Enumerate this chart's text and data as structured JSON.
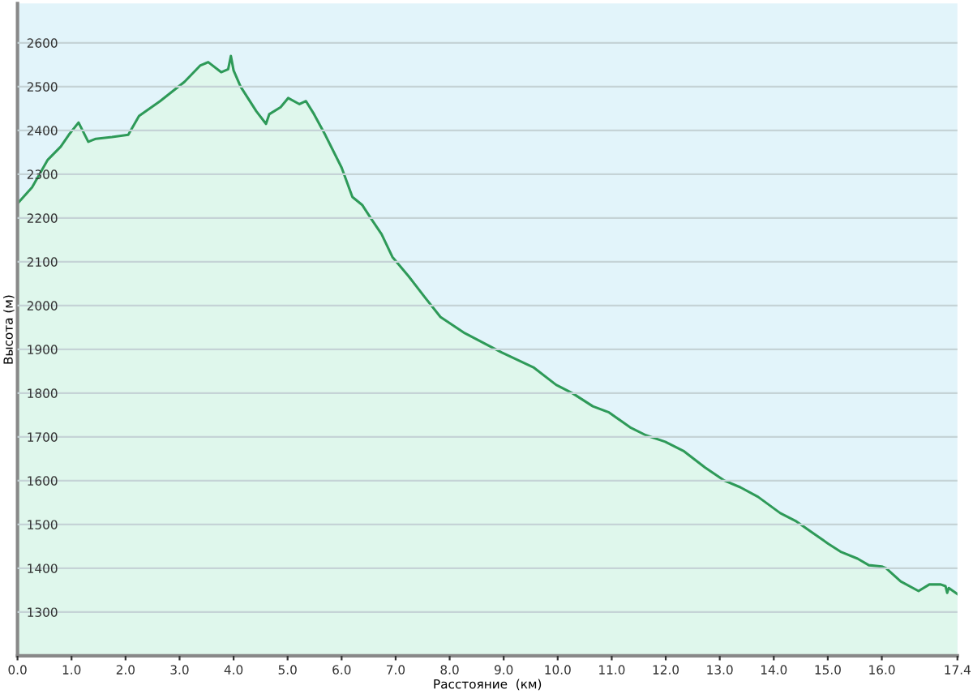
{
  "chart_data": {
    "type": "area",
    "xlabel": "Расстояние  (км)",
    "ylabel": "Высота (м)",
    "x": [
      0,
      0.27,
      0.56,
      0.8,
      0.95,
      1.13,
      1.31,
      1.45,
      1.75,
      2.05,
      2.25,
      2.64,
      3.09,
      3.38,
      3.53,
      3.77,
      3.9,
      3.95,
      4.0,
      4.13,
      4.42,
      4.6,
      4.66,
      4.87,
      5.01,
      5.22,
      5.34,
      5.49,
      5.7,
      6.0,
      6.2,
      6.38,
      6.56,
      6.74,
      6.94,
      7.24,
      7.54,
      7.83,
      8.28,
      8.96,
      9.55,
      9.97,
      10.27,
      10.65,
      10.95,
      11.34,
      11.63,
      11.99,
      12.34,
      12.73,
      13.09,
      13.38,
      13.71,
      14.12,
      14.42,
      14.72,
      15.01,
      15.25,
      15.55,
      15.76,
      16.0,
      16.08,
      16.35,
      16.68,
      16.88,
      17.09,
      17.18,
      17.21,
      17.24,
      17.4
    ],
    "series": [
      {
        "color": "#2e9a58",
        "values": [
          2233,
          2270,
          2333,
          2363,
          2390,
          2418,
          2374,
          2381,
          2385,
          2390,
          2433,
          2467,
          2511,
          2548,
          2556,
          2533,
          2540,
          2570,
          2537,
          2500,
          2444,
          2415,
          2437,
          2453,
          2474,
          2460,
          2467,
          2437,
          2389,
          2315,
          2248,
          2230,
          2196,
          2163,
          2111,
          2067,
          2019,
          1974,
          1937,
          1893,
          1859,
          1819,
          1800,
          1770,
          1756,
          1722,
          1704,
          1689,
          1667,
          1630,
          1600,
          1585,
          1563,
          1526,
          1507,
          1481,
          1456,
          1437,
          1422,
          1407,
          1404,
          1400,
          1370,
          1348,
          1363,
          1363,
          1359,
          1344,
          1355,
          1341
        ]
      }
    ],
    "xlim": [
      0,
      17.4
    ],
    "xticks": [
      {
        "value": 0,
        "label": "0.0"
      },
      {
        "value": 1,
        "label": "1.0"
      },
      {
        "value": 2,
        "label": "2.0"
      },
      {
        "value": 3,
        "label": "3.0"
      },
      {
        "value": 4,
        "label": "4.0"
      },
      {
        "value": 5,
        "label": "5.0"
      },
      {
        "value": 6,
        "label": "6.0"
      },
      {
        "value": 7,
        "label": "7.0"
      },
      {
        "value": 8,
        "label": "8.0"
      },
      {
        "value": 9,
        "label": "9.0"
      },
      {
        "value": 10,
        "label": "10.0"
      },
      {
        "value": 11,
        "label": "11.0"
      },
      {
        "value": 12,
        "label": "12.0"
      },
      {
        "value": 13,
        "label": "13.0"
      },
      {
        "value": 14,
        "label": "14.0"
      },
      {
        "value": 15,
        "label": "15.0"
      },
      {
        "value": 16,
        "label": "16.0"
      },
      {
        "value": 17.4,
        "label": "17.4"
      }
    ],
    "ylim": [
      1200,
      2690
    ],
    "yticks": [
      1300,
      1400,
      1500,
      1600,
      1700,
      1800,
      1900,
      2000,
      2100,
      2200,
      2300,
      2400,
      2500,
      2600
    ],
    "grid": "y"
  }
}
